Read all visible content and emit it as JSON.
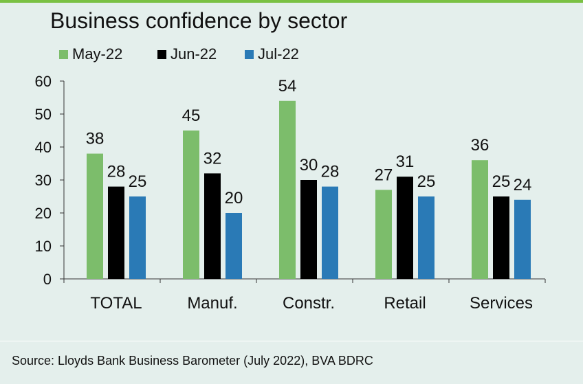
{
  "chart_data": {
    "type": "bar",
    "title": "Business confidence by sector",
    "categories": [
      "TOTAL",
      "Manuf.",
      "Constr.",
      "Retail",
      "Services"
    ],
    "series": [
      {
        "name": "May-22",
        "color": "#7cbd6b",
        "values": [
          38,
          45,
          54,
          27,
          36
        ]
      },
      {
        "name": "Jun-22",
        "color": "#000000",
        "values": [
          28,
          32,
          30,
          31,
          25
        ]
      },
      {
        "name": "Jul-22",
        "color": "#2a7ab6",
        "values": [
          25,
          20,
          28,
          25,
          24
        ]
      }
    ],
    "yticks": [
      "0",
      "10",
      "20",
      "30",
      "40",
      "50",
      "60"
    ],
    "ylim": [
      0,
      60
    ],
    "xlabel": "",
    "ylabel": "",
    "legend_position": "top-left",
    "grid": false
  },
  "source": "Source: Lloyds Bank Business Barometer (July 2022), BVA BDRC"
}
